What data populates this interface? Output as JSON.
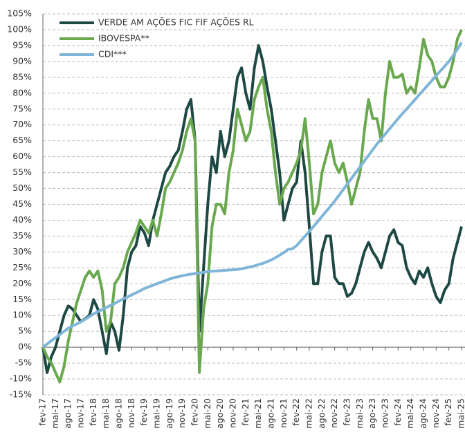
{
  "chart_data": {
    "type": "line",
    "categories": [
      "fev-17",
      null,
      null,
      "mai-17",
      null,
      null,
      "ago-17",
      null,
      null,
      "nov-17",
      null,
      null,
      "fev-18",
      null,
      null,
      "mai-18",
      null,
      null,
      "ago-18",
      null,
      null,
      "nov-18",
      null,
      null,
      "fev-19",
      null,
      null,
      "mai-19",
      null,
      null,
      "ago-19",
      null,
      null,
      "nov-19",
      null,
      null,
      "fev-20",
      null,
      null,
      "mai-20",
      null,
      null,
      "ago-20",
      null,
      null,
      "nov-20",
      null,
      null,
      "fev-21",
      null,
      null,
      "mai-21",
      null,
      null,
      "ago-21",
      null,
      null,
      "nov-21",
      null,
      null,
      "fev-22",
      null,
      null,
      "mai-22",
      null,
      null,
      "ago-22",
      null,
      null,
      "nov-22",
      null,
      null,
      "fev-23",
      null,
      null,
      "mai-23",
      null,
      null,
      "ago-23",
      null,
      null,
      "nov-23",
      null,
      null,
      "fev-24",
      null,
      null,
      "mai-24",
      null,
      null,
      "ago-24",
      null,
      null,
      "nov-24",
      null,
      null,
      "fev-25",
      null,
      null,
      "mai-25"
    ],
    "series": [
      {
        "name": "VERDE AM AÇÕES FIC FIF AÇÕES RL",
        "color": "#1d4843",
        "values": [
          0,
          -8,
          -3,
          0,
          5,
          10,
          13,
          12,
          10,
          8,
          9,
          10,
          15,
          12,
          5,
          -2,
          8,
          5,
          -1,
          10,
          25,
          30,
          32,
          38,
          36,
          32,
          40,
          45,
          50,
          55,
          57,
          60,
          62,
          68,
          75,
          78,
          65,
          5,
          25,
          45,
          60,
          55,
          68,
          60,
          65,
          75,
          85,
          88,
          80,
          75,
          88,
          95,
          90,
          82,
          75,
          65,
          55,
          40,
          45,
          50,
          52,
          65,
          55,
          38,
          20,
          20,
          30,
          35,
          35,
          22,
          20,
          20,
          16,
          17,
          20,
          25,
          30,
          33,
          30,
          28,
          25,
          30,
          35,
          37,
          33,
          32,
          25,
          22,
          20,
          24,
          22,
          25,
          20,
          16,
          14,
          18,
          20,
          28,
          33,
          38
        ]
      },
      {
        "name": "IBOVESPA**",
        "color": "#6aa84f",
        "values": [
          0,
          -3,
          -5,
          -8,
          -11,
          -6,
          2,
          8,
          14,
          18,
          22,
          24,
          22,
          24,
          18,
          5,
          8,
          20,
          22,
          25,
          30,
          33,
          36,
          40,
          38,
          36,
          40,
          35,
          42,
          50,
          52,
          55,
          58,
          62,
          68,
          72,
          65,
          -8,
          12,
          20,
          38,
          45,
          45,
          42,
          55,
          62,
          75,
          70,
          65,
          68,
          78,
          82,
          85,
          75,
          68,
          55,
          45,
          50,
          52,
          55,
          58,
          62,
          72,
          58,
          42,
          45,
          55,
          60,
          65,
          58,
          55,
          58,
          52,
          45,
          50,
          55,
          68,
          78,
          72,
          72,
          65,
          80,
          90,
          85,
          85,
          86,
          80,
          82,
          80,
          88,
          97,
          92,
          90,
          85,
          82,
          82,
          85,
          90,
          97,
          100
        ]
      },
      {
        "name": "CDI***",
        "color": "#7fb5d8",
        "values": [
          0,
          1,
          2,
          3,
          4,
          5,
          6,
          6.7,
          7.3,
          8,
          8.8,
          9.6,
          10.5,
          11.2,
          11.8,
          12.5,
          13.2,
          13.8,
          14.5,
          15.2,
          15.8,
          16.5,
          17.1,
          17.8,
          18.5,
          19,
          19.5,
          20,
          20.5,
          21,
          21.5,
          21.9,
          22.2,
          22.5,
          22.8,
          23,
          23.2,
          23.4,
          23.6,
          23.8,
          23.9,
          24,
          24.1,
          24.2,
          24.3,
          24.4,
          24.5,
          24.7,
          25,
          25.3,
          25.6,
          26,
          26.4,
          26.9,
          27.5,
          28.2,
          29,
          29.8,
          30.8,
          31,
          32,
          33.5,
          35,
          36.5,
          38,
          39.6,
          41.2,
          42.8,
          44.4,
          46,
          47.8,
          49.6,
          51.4,
          53.2,
          55,
          56.8,
          58.6,
          60.4,
          62.2,
          64,
          65.6,
          67.2,
          68.8,
          70.4,
          72,
          73.5,
          75,
          76.5,
          78,
          79.5,
          81,
          82.5,
          84,
          85.5,
          87,
          88.5,
          90,
          91.8,
          93.8,
          96
        ]
      }
    ],
    "ylim": [
      -15,
      105
    ],
    "yticks": [
      {
        "value": -15,
        "label": "-15%"
      },
      {
        "value": -10,
        "label": "-10%"
      },
      {
        "value": -5,
        "label": "-5%"
      },
      {
        "value": 0,
        "label": "0%"
      },
      {
        "value": 5,
        "label": "5%"
      },
      {
        "value": 10,
        "label": "10%"
      },
      {
        "value": 15,
        "label": "15%"
      },
      {
        "value": 20,
        "label": "20%"
      },
      {
        "value": 25,
        "label": "25%"
      },
      {
        "value": 30,
        "label": "30%"
      },
      {
        "value": 35,
        "label": "35%"
      },
      {
        "value": 40,
        "label": "40%"
      },
      {
        "value": 45,
        "label": "45%"
      },
      {
        "value": 50,
        "label": "50%"
      },
      {
        "value": 55,
        "label": "55%"
      },
      {
        "value": 60,
        "label": "60%"
      },
      {
        "value": 65,
        "label": "65%"
      },
      {
        "value": 70,
        "label": "70%"
      },
      {
        "value": 75,
        "label": "75%"
      },
      {
        "value": 80,
        "label": "80%"
      },
      {
        "value": 85,
        "label": "85%"
      },
      {
        "value": 90,
        "label": "90%"
      },
      {
        "value": 95,
        "label": "95%"
      },
      {
        "value": 100,
        "label": "100%"
      },
      {
        "value": 105,
        "label": "105%"
      }
    ],
    "grid": true,
    "legend": "upper left"
  }
}
